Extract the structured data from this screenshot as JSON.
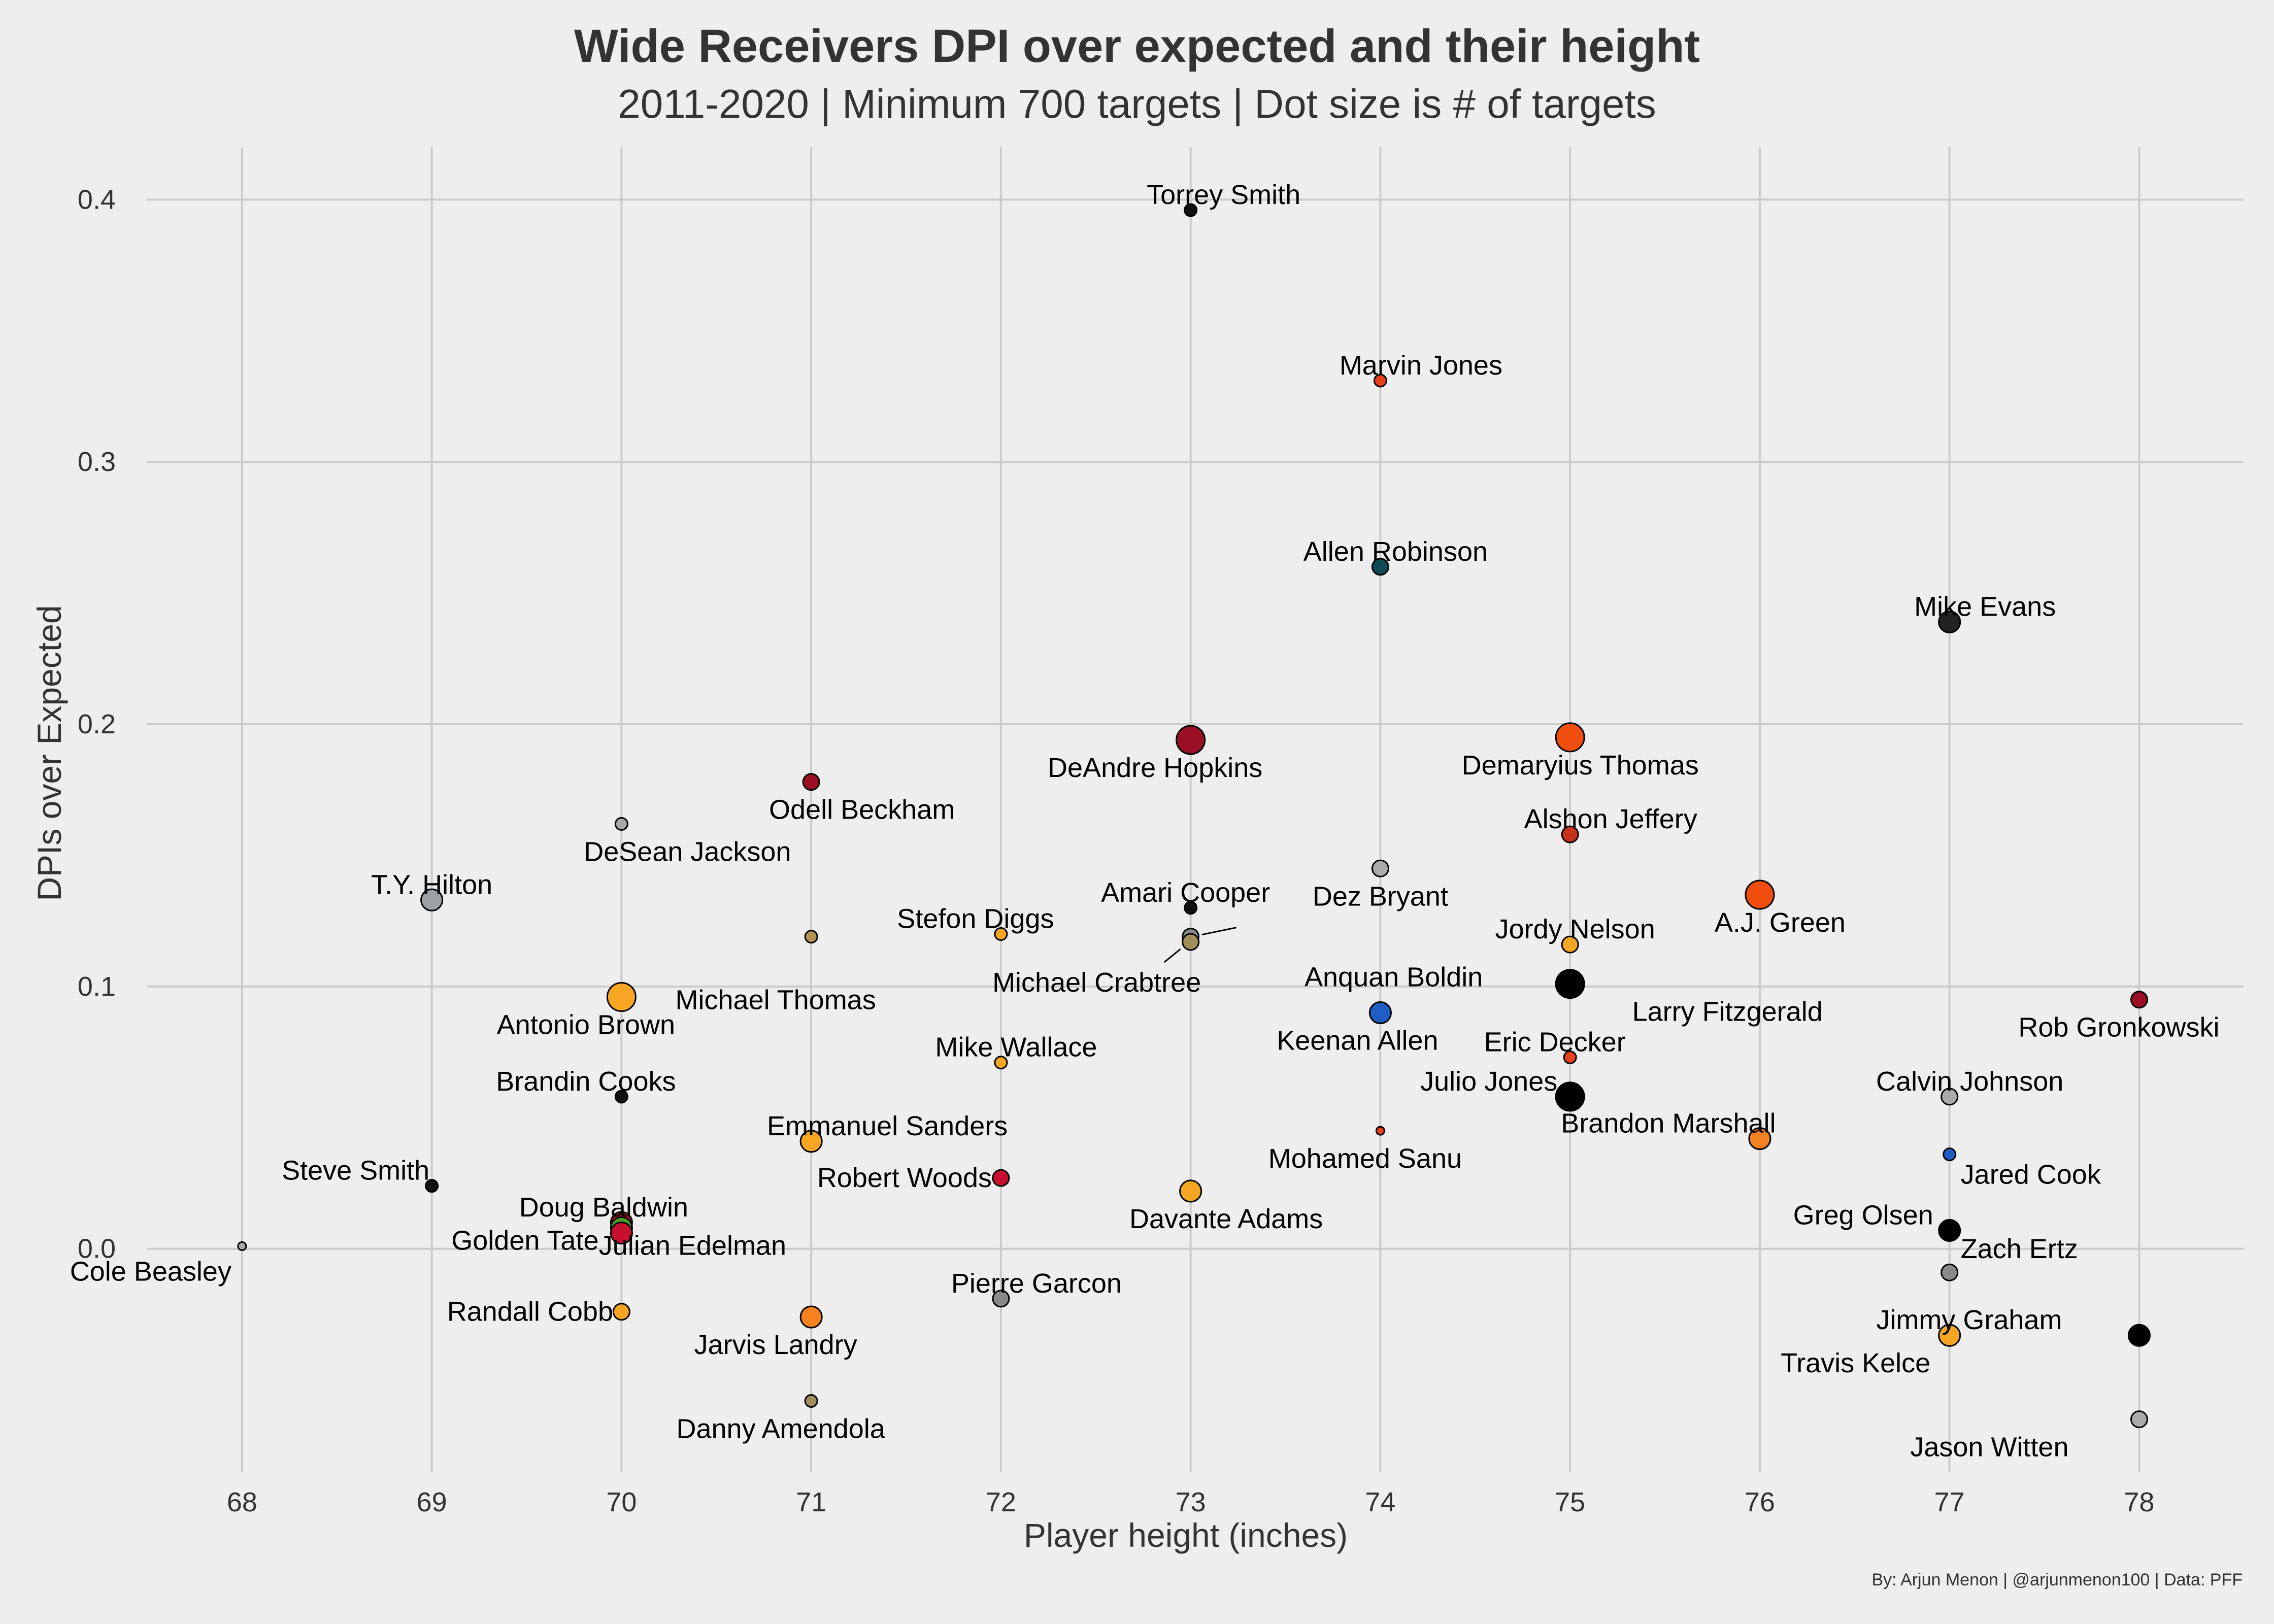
{
  "chart_data": {
    "type": "scatter",
    "title": "Wide Receivers DPI over expected and their height",
    "subtitle": "2011-2020 | Minimum 700 targets | Dot size is # of targets",
    "xlabel": "Player height (inches)",
    "ylabel": "DPIs over Expected",
    "caption": "By: Arjun Menon | @arjunmenon100 | Data: PFF",
    "xlim": [
      67.5,
      78.55
    ],
    "ylim": [
      -0.085,
      0.42
    ],
    "x_ticks": [
      68,
      69,
      70,
      71,
      72,
      73,
      74,
      75,
      76,
      77,
      78
    ],
    "y_ticks": [
      0.0,
      0.1,
      0.2,
      0.3,
      0.4
    ],
    "y_tick_labels": [
      "0.0",
      "0.1",
      "0.2",
      "0.3",
      "0.4"
    ],
    "grid": true,
    "size_encoding": "# of targets",
    "points": [
      {
        "name": "Torrey Smith",
        "x": 73,
        "y": 0.396,
        "size": "small",
        "color": "#111111"
      },
      {
        "name": "Marvin Jones",
        "x": 74,
        "y": 0.331,
        "size": "small",
        "color": "#e8401c"
      },
      {
        "name": "Allen Robinson",
        "x": 74,
        "y": 0.26,
        "size": "medium",
        "color": "#0f4a55"
      },
      {
        "name": "Mike Evans",
        "x": 77,
        "y": 0.239,
        "size": "large",
        "color": "#222222"
      },
      {
        "name": "DeAndre Hopkins",
        "x": 73,
        "y": 0.194,
        "size": "xlarge",
        "color": "#9b0f24"
      },
      {
        "name": "Demaryius Thomas",
        "x": 75,
        "y": 0.195,
        "size": "xlarge",
        "color": "#f04e0e"
      },
      {
        "name": "Odell Beckham",
        "x": 71,
        "y": 0.178,
        "size": "medium",
        "color": "#9b0f24"
      },
      {
        "name": "DeSean Jackson",
        "x": 70,
        "y": 0.162,
        "size": "small",
        "color": "#aaaaaa"
      },
      {
        "name": "Alshon Jeffery",
        "x": 75,
        "y": 0.158,
        "size": "medium",
        "color": "#c8321a"
      },
      {
        "name": "Dez Bryant",
        "x": 74,
        "y": 0.145,
        "size": "medium",
        "color": "#aaaaaa"
      },
      {
        "name": "A.J. Green",
        "x": 76,
        "y": 0.135,
        "size": "xlarge",
        "color": "#f04e0e"
      },
      {
        "name": "T.Y. Hilton",
        "x": 69,
        "y": 0.133,
        "size": "large",
        "color": "#9fa2a5"
      },
      {
        "name": "Amari Cooper",
        "x": 73,
        "y": 0.13,
        "size": "small",
        "color": "#111111"
      },
      {
        "name": "Stefon Diggs",
        "x": 72,
        "y": 0.12,
        "size": "small",
        "color": "#f6a623"
      },
      {
        "name": "Michael Thomas",
        "x": 71,
        "y": 0.119,
        "size": "small",
        "color": "#b39350"
      },
      {
        "name": "Anquan Boldin",
        "x": 73,
        "y": 0.119,
        "size": "medium",
        "color": "#8a8a8a"
      },
      {
        "name": "Michael Crabtree",
        "x": 73,
        "y": 0.117,
        "size": "medium",
        "color": "#a38d5a"
      },
      {
        "name": "Jordy Nelson",
        "x": 75,
        "y": 0.116,
        "size": "medium",
        "color": "#f6a623"
      },
      {
        "name": "Larry Fitzgerald",
        "x": 75,
        "y": 0.101,
        "size": "xlarge",
        "color": "#000000"
      },
      {
        "name": "Antonio Brown",
        "x": 70,
        "y": 0.096,
        "size": "xlarge",
        "color": "#f6a623"
      },
      {
        "name": "Rob Gronkowski",
        "x": 78,
        "y": 0.095,
        "size": "medium",
        "color": "#9b0f24"
      },
      {
        "name": "Keenan Allen",
        "x": 74,
        "y": 0.09,
        "size": "large",
        "color": "#1f5fc4"
      },
      {
        "name": "Eric Decker",
        "x": 75,
        "y": 0.073,
        "size": "small",
        "color": "#e8401c"
      },
      {
        "name": "Mike Wallace",
        "x": 72,
        "y": 0.071,
        "size": "small",
        "color": "#f6a623"
      },
      {
        "name": "Julio Jones",
        "x": 75,
        "y": 0.058,
        "size": "xlarge",
        "color": "#000000"
      },
      {
        "name": "Brandin Cooks",
        "x": 70,
        "y": 0.058,
        "size": "small",
        "color": "#111111"
      },
      {
        "name": "Calvin Johnson",
        "x": 77,
        "y": 0.058,
        "size": "medium",
        "color": "#aaaaaa"
      },
      {
        "name": "Mohamed Sanu",
        "x": 74,
        "y": 0.045,
        "size": "tiny",
        "color": "#e8401c"
      },
      {
        "name": "Brandon Marshall",
        "x": 76,
        "y": 0.042,
        "size": "large",
        "color": "#f58220"
      },
      {
        "name": "Emmanuel Sanders",
        "x": 71,
        "y": 0.041,
        "size": "large",
        "color": "#f6a623"
      },
      {
        "name": "Jared Cook",
        "x": 77,
        "y": 0.036,
        "size": "small",
        "color": "#1f5fc4"
      },
      {
        "name": "Robert Woods",
        "x": 72,
        "y": 0.027,
        "size": "medium",
        "color": "#c8102e"
      },
      {
        "name": "Steve Smith",
        "x": 69,
        "y": 0.024,
        "size": "small",
        "color": "#111111"
      },
      {
        "name": "Davante Adams",
        "x": 73,
        "y": 0.022,
        "size": "large",
        "color": "#f6a623"
      },
      {
        "name": "Doug Baldwin",
        "x": 70,
        "y": 0.01,
        "size": "large",
        "color": "#9b0f24"
      },
      {
        "name": "Golden Tate",
        "x": 70,
        "y": 0.008,
        "size": "large",
        "color": "#4aa02c"
      },
      {
        "name": "Julian Edelman",
        "x": 70,
        "y": 0.006,
        "size": "large",
        "color": "#c8102e"
      },
      {
        "name": "Greg Olsen",
        "x": 77,
        "y": 0.007,
        "size": "large",
        "color": "#000000"
      },
      {
        "name": "Cole Beasley",
        "x": 68,
        "y": 0.001,
        "size": "tiny",
        "color": "#aaaaaa"
      },
      {
        "name": "Zach Ertz",
        "x": 77,
        "y": -0.009,
        "size": "medium",
        "color": "#8a8a8a"
      },
      {
        "name": "Pierre Garcon",
        "x": 72,
        "y": -0.019,
        "size": "medium",
        "color": "#8a8a8a"
      },
      {
        "name": "Randall Cobb",
        "x": 70,
        "y": -0.024,
        "size": "medium",
        "color": "#f6a623"
      },
      {
        "name": "Jarvis Landry",
        "x": 71,
        "y": -0.026,
        "size": "large",
        "color": "#f58220"
      },
      {
        "name": "Jimmy Graham",
        "x": 78,
        "y": -0.033,
        "size": "large",
        "color": "#000000"
      },
      {
        "name": "Travis Kelce",
        "x": 77,
        "y": -0.033,
        "size": "large",
        "color": "#f6a623"
      },
      {
        "name": "Danny Amendola",
        "x": 71,
        "y": -0.058,
        "size": "small",
        "color": "#a38d5a"
      },
      {
        "name": "Jason Witten",
        "x": 78,
        "y": -0.065,
        "size": "medium",
        "color": "#aaaaaa"
      }
    ]
  }
}
